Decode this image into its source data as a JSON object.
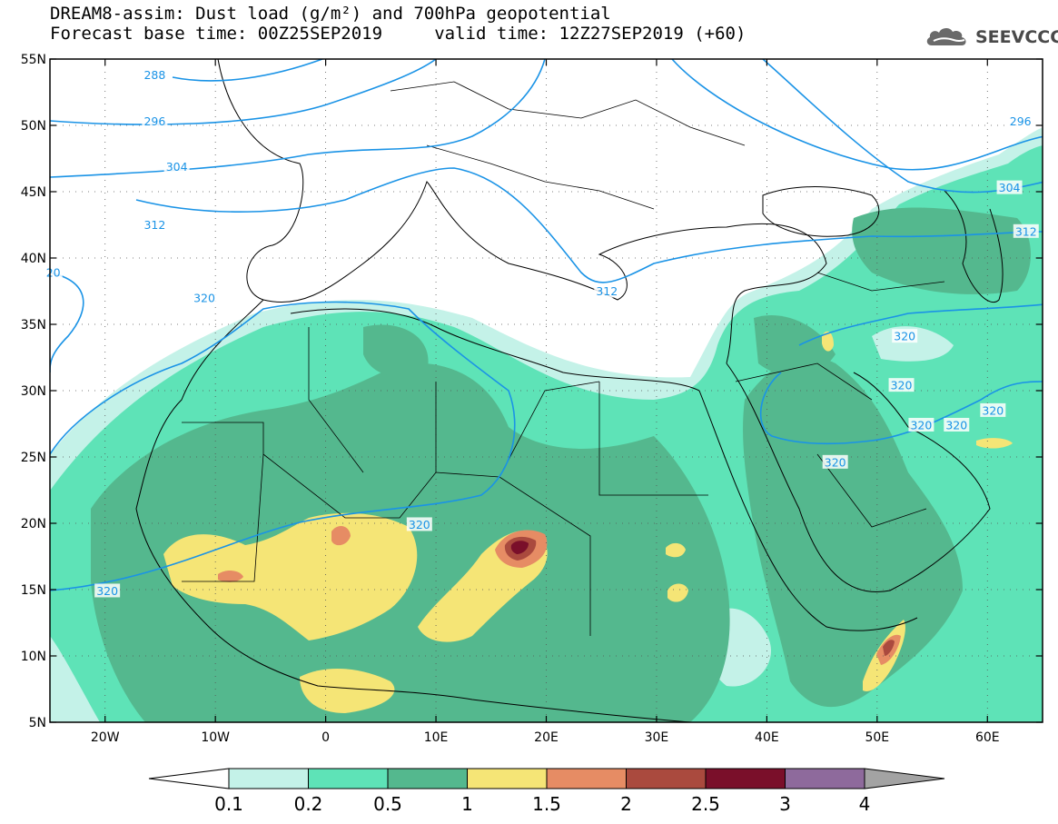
{
  "header": {
    "title_line1": "DREAM8-assim: Dust load (g/m²) and 700hPa geopotential",
    "title_line2": "Forecast base time: 00Z25SEP2019     valid time: 12Z27SEP2019 (+60)",
    "logo_text": "SEEVCCC",
    "logo_icon": "cloud-icon"
  },
  "map": {
    "lat_labels": [
      "55N",
      "50N",
      "45N",
      "40N",
      "35N",
      "30N",
      "25N",
      "20N",
      "15N",
      "10N",
      "5N"
    ],
    "lon_labels": [
      "20W",
      "10W",
      "0",
      "10E",
      "20E",
      "30E",
      "40E",
      "50E",
      "60E"
    ],
    "contour_labels": [
      {
        "text": "288",
        "lon": -15.5,
        "lat": 53.8
      },
      {
        "text": "296",
        "lon": -15.5,
        "lat": 50.3
      },
      {
        "text": "304",
        "lon": -13.5,
        "lat": 46.9
      },
      {
        "text": "312",
        "lon": -15.5,
        "lat": 42.5
      },
      {
        "text": "20",
        "lon": -24.7,
        "lat": 38.9
      },
      {
        "text": "320",
        "lon": -11.0,
        "lat": 37.0
      },
      {
        "text": "312",
        "lon": 25.5,
        "lat": 37.5
      },
      {
        "text": "320",
        "lon": 8.5,
        "lat": 19.9
      },
      {
        "text": "320",
        "lon": -19.8,
        "lat": 14.9
      },
      {
        "text": "320",
        "lon": 46.2,
        "lat": 24.6
      },
      {
        "text": "320",
        "lon": 52.5,
        "lat": 34.1
      },
      {
        "text": "320",
        "lon": 52.2,
        "lat": 30.4
      },
      {
        "text": "320",
        "lon": 54.0,
        "lat": 27.4
      },
      {
        "text": "320",
        "lon": 57.2,
        "lat": 27.4
      },
      {
        "text": "320",
        "lon": 60.5,
        "lat": 28.5
      },
      {
        "text": "296",
        "lon": 63.0,
        "lat": 50.3
      },
      {
        "text": "304",
        "lon": 62.0,
        "lat": 45.3
      },
      {
        "text": "312",
        "lon": 63.5,
        "lat": 42.0
      }
    ]
  },
  "colorbar": {
    "labels": [
      "0.1",
      "0.2",
      "0.5",
      "1",
      "1.5",
      "2",
      "2.5",
      "3",
      "4"
    ],
    "colors": [
      "#c4f2e8",
      "#5ee3b7",
      "#54b88e",
      "#f5e576",
      "#e68c64",
      "#aa4a3e",
      "#7a0f2a",
      "#8e6a9c"
    ],
    "under_color": "#ffffff",
    "over_color": "#a3a3a3"
  },
  "style": {
    "contour_color": "#1a93e6"
  }
}
